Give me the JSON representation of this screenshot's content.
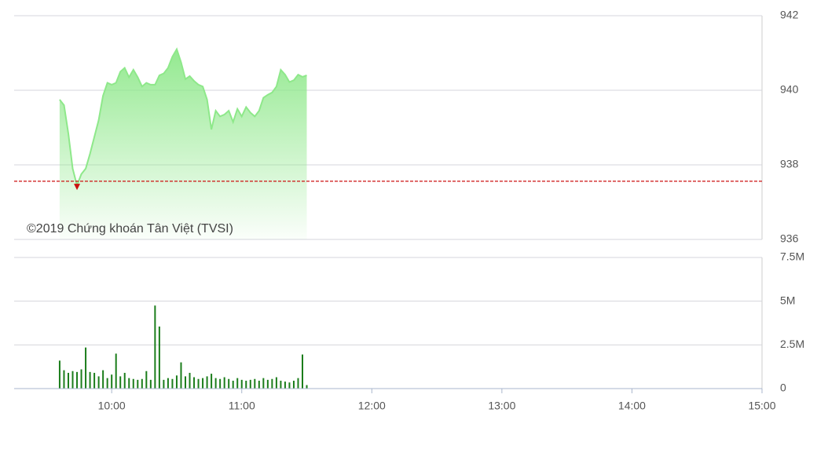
{
  "chart_data": [
    {
      "type": "area",
      "annotation": "©2019 Chứng khoán Tân Việt (TVSI)",
      "color": "#8ee88a",
      "reference_color": "#cc1111",
      "reference_value": 937.56,
      "x": [
        "09:36",
        "09:38",
        "09:40",
        "09:42",
        "09:44",
        "09:46",
        "09:48",
        "09:50",
        "09:52",
        "09:54",
        "09:56",
        "09:58",
        "10:00",
        "10:02",
        "10:04",
        "10:06",
        "10:08",
        "10:10",
        "10:12",
        "10:14",
        "10:16",
        "10:18",
        "10:20",
        "10:22",
        "10:24",
        "10:26",
        "10:28",
        "10:30",
        "10:32",
        "10:34",
        "10:36",
        "10:38",
        "10:40",
        "10:42",
        "10:44",
        "10:46",
        "10:48",
        "10:50",
        "10:52",
        "10:54",
        "10:56",
        "10:58",
        "11:00",
        "11:02",
        "11:04",
        "11:06",
        "11:08",
        "11:10",
        "11:12",
        "11:14",
        "11:16",
        "11:18",
        "11:20",
        "11:22",
        "11:24",
        "11:26",
        "11:28",
        "11:30"
      ],
      "values": [
        939.75,
        939.6,
        938.84,
        937.9,
        937.45,
        937.75,
        937.9,
        938.3,
        938.75,
        939.2,
        939.85,
        940.2,
        940.15,
        940.2,
        940.5,
        940.6,
        940.35,
        940.55,
        940.35,
        940.1,
        940.2,
        940.15,
        940.15,
        940.4,
        940.45,
        940.6,
        940.9,
        941.1,
        940.75,
        940.3,
        940.38,
        940.25,
        940.15,
        940.1,
        939.75,
        938.95,
        939.45,
        939.3,
        939.35,
        939.45,
        939.15,
        939.5,
        939.3,
        939.55,
        939.4,
        939.3,
        939.45,
        939.8,
        939.88,
        939.94,
        940.1,
        940.55,
        940.42,
        940.22,
        940.27,
        940.42,
        940.36,
        940.4
      ],
      "xlim": [
        "09:15",
        "15:00"
      ],
      "ylim": [
        936,
        942
      ],
      "yticks": [
        936,
        938,
        940,
        942
      ],
      "grid": true
    },
    {
      "type": "bar",
      "color": "#1b7d1b",
      "x": [
        "09:36",
        "09:38",
        "09:40",
        "09:42",
        "09:44",
        "09:46",
        "09:48",
        "09:50",
        "09:52",
        "09:54",
        "09:56",
        "09:58",
        "10:00",
        "10:02",
        "10:04",
        "10:06",
        "10:08",
        "10:10",
        "10:12",
        "10:14",
        "10:16",
        "10:18",
        "10:20",
        "10:22",
        "10:24",
        "10:26",
        "10:28",
        "10:30",
        "10:32",
        "10:34",
        "10:36",
        "10:38",
        "10:40",
        "10:42",
        "10:44",
        "10:46",
        "10:48",
        "10:50",
        "10:52",
        "10:54",
        "10:56",
        "10:58",
        "11:00",
        "11:02",
        "11:04",
        "11:06",
        "11:08",
        "11:10",
        "11:12",
        "11:14",
        "11:16",
        "11:18",
        "11:20",
        "11:22",
        "11:24",
        "11:26",
        "11:28",
        "11:30"
      ],
      "values": [
        1600000,
        1050000,
        900000,
        1000000,
        950000,
        1100000,
        2350000,
        950000,
        900000,
        700000,
        1050000,
        600000,
        800000,
        2000000,
        700000,
        900000,
        600000,
        550000,
        500000,
        550000,
        1000000,
        500000,
        4750000,
        3550000,
        500000,
        600000,
        550000,
        750000,
        1500000,
        700000,
        900000,
        650000,
        550000,
        600000,
        700000,
        850000,
        600000,
        550000,
        650000,
        550000,
        450000,
        600000,
        500000,
        450000,
        500000,
        550000,
        450000,
        600000,
        500000,
        550000,
        650000,
        450000,
        400000,
        350000,
        450000,
        600000,
        1950000,
        200000
      ],
      "xlim": [
        "09:15",
        "15:00"
      ],
      "ylim": [
        0,
        7500000
      ],
      "yticks": [
        0,
        {
          "value": 2500000,
          "label": "2.5M"
        },
        {
          "value": 5000000,
          "label": "5M"
        },
        {
          "value": 7500000,
          "label": "7.5M"
        }
      ],
      "xticks": [
        "10:00",
        "11:00",
        "12:00",
        "13:00",
        "14:00",
        "15:00"
      ],
      "grid": true
    }
  ]
}
